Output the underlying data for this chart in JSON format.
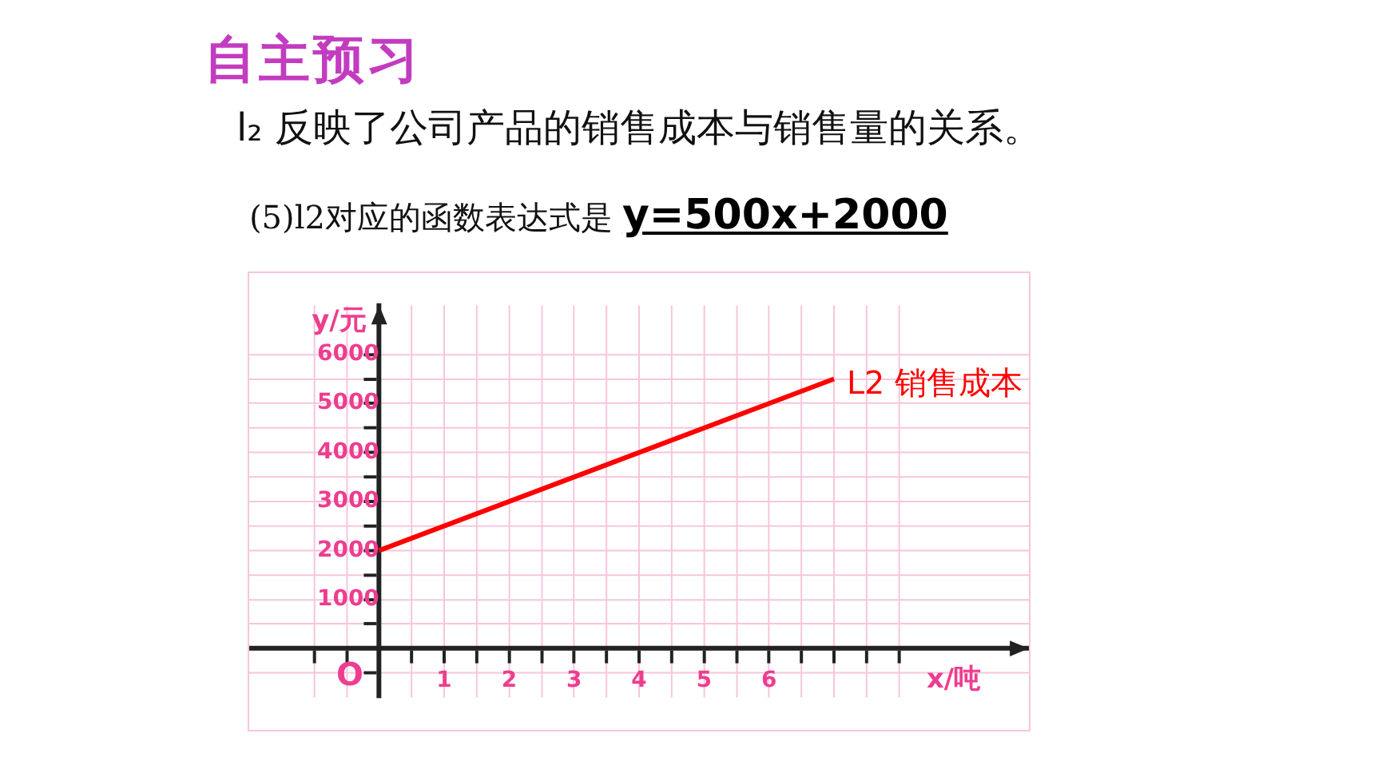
{
  "chart_data": {
    "type": "line",
    "title": "自主预习",
    "subtitle": "l₂ 反映了公司产品的销售成本与销售量的关系。",
    "xlabel": "x/吨",
    "ylabel": "y/元",
    "annotations": [
      "(5)l2对应的函数表达式是",
      "y=500x+2000",
      "O"
    ],
    "series": [
      {
        "name": "L2 销售成本",
        "color": "#ff0000",
        "x": [
          0,
          7
        ],
        "values": [
          2000,
          5500
        ]
      }
    ],
    "xlim": [
      -2,
      10
    ],
    "ylim": [
      -1000,
      7000
    ],
    "xticks": [
      {
        "value": -1,
        "label": null
      },
      {
        "value": -0.5,
        "label": null
      },
      {
        "value": 0.5,
        "label": null
      },
      1,
      {
        "value": 1.5,
        "label": null
      },
      2,
      {
        "value": 2.5,
        "label": null
      },
      3,
      {
        "value": 3.5,
        "label": null
      },
      4,
      {
        "value": 4.5,
        "label": null
      },
      5,
      {
        "value": 5.5,
        "label": null
      },
      6,
      {
        "value": 6.5,
        "label": null
      },
      {
        "value": 7,
        "label": null
      },
      {
        "value": 7.5,
        "label": null
      },
      {
        "value": 8,
        "label": null
      }
    ],
    "yticks": [
      {
        "value": -500,
        "label": null
      },
      {
        "value": 500,
        "label": null
      },
      1000,
      {
        "value": 1500,
        "label": null
      },
      2000,
      {
        "value": 2500,
        "label": null
      },
      3000,
      {
        "value": 3500,
        "label": null
      },
      4000,
      {
        "value": 4500,
        "label": null
      },
      5000,
      {
        "value": 5500,
        "label": null
      },
      6000
    ],
    "grid": true,
    "legend": false,
    "marker": "none",
    "line_style": "solid"
  }
}
